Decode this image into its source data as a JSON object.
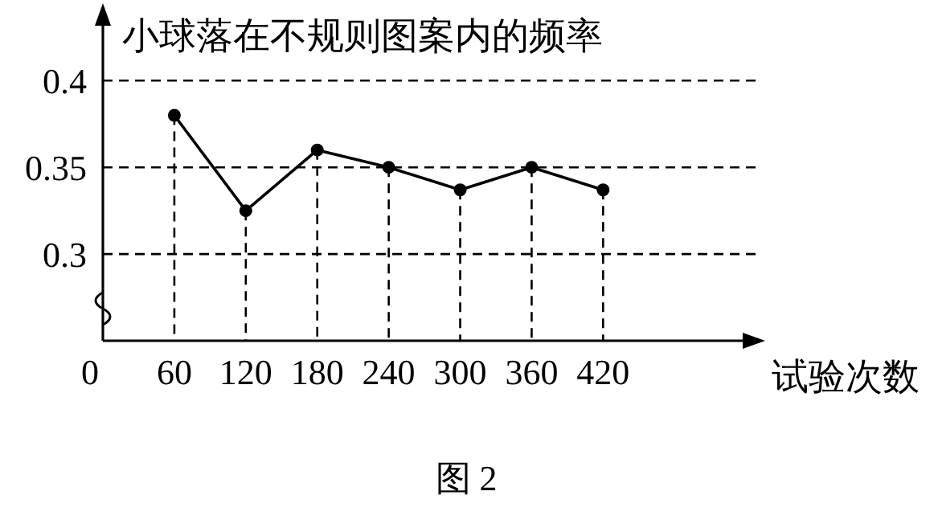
{
  "chart_data": {
    "type": "line",
    "ylabel": "小球落在不规则图案内的频率",
    "xlabel": "试验次数",
    "x": [
      60,
      120,
      180,
      240,
      300,
      360,
      420
    ],
    "series": [
      {
        "color": "#000000",
        "line_style": "solid",
        "values": [
          0.38,
          0.325,
          0.36,
          0.35,
          0.337,
          0.35,
          0.337
        ]
      },
      {
        "type": "lollipop",
        "color": "#000000",
        "line_style": "dashed",
        "marker": "circle",
        "values": [
          0.38,
          0.325,
          0.36,
          0.35,
          0.337,
          0.35,
          0.337
        ]
      }
    ],
    "grid": "y",
    "xlim": [
      0,
      548
    ],
    "ylim": [
      0.25,
      0.44
    ],
    "xticks": [
      0,
      60,
      120,
      180,
      240,
      300,
      360,
      420
    ],
    "yticks": [
      0.3,
      0.35,
      0.4
    ],
    "annotations": [
      "图 2"
    ]
  }
}
